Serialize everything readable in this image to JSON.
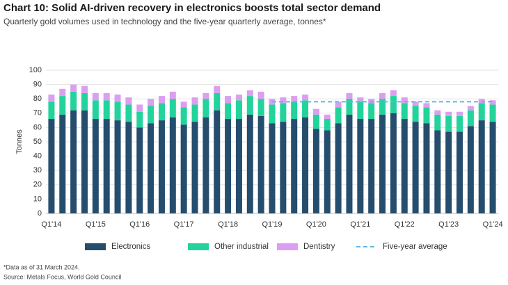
{
  "chart_data": {
    "type": "bar",
    "stacked": true,
    "title": "Chart 10: Solid AI-driven recovery in electronics boosts total sector demand",
    "subtitle": "Quarterly gold volumes used in technology and the five-year quarterly average, tonnes*",
    "y_label": "Tonnes",
    "categories": [
      "Q1'14",
      null,
      null,
      null,
      "Q1'15",
      null,
      null,
      null,
      "Q1'16",
      null,
      null,
      null,
      "Q1'17",
      null,
      null,
      null,
      "Q1'18",
      null,
      null,
      null,
      "Q1'19",
      null,
      null,
      null,
      "Q1'20",
      null,
      null,
      null,
      "Q1'21",
      null,
      null,
      null,
      "Q1'22",
      null,
      null,
      null,
      "Q1'23",
      null,
      null,
      null,
      "Q1'24"
    ],
    "series": [
      {
        "name": "Electronics",
        "color": "#254d6e",
        "values": [
          66,
          69,
          72,
          72,
          66,
          66,
          65,
          64,
          60,
          63,
          65,
          67,
          62,
          64,
          67,
          72,
          66,
          66,
          69,
          68,
          63,
          64,
          66,
          67,
          59,
          58,
          63,
          69,
          66,
          66,
          69,
          70,
          66,
          64,
          63,
          58,
          57,
          57,
          61,
          65,
          64
        ]
      },
      {
        "name": "Other industrial",
        "color": "#22d39b",
        "values": [
          12,
          13,
          13,
          12,
          13,
          13,
          13,
          12,
          11,
          12,
          12,
          13,
          12,
          12,
          13,
          12,
          11,
          13,
          13,
          12,
          13,
          13,
          12,
          12,
          10,
          8,
          11,
          11,
          12,
          11,
          11,
          12,
          11,
          11,
          11,
          11,
          11,
          11,
          11,
          12,
          12
        ]
      },
      {
        "name": "Dentistry",
        "color": "#dc9ef0",
        "values": [
          5,
          5,
          5,
          5,
          5,
          5,
          5,
          5,
          5,
          5,
          5,
          5,
          4,
          5,
          4,
          5,
          5,
          4,
          4,
          5,
          4,
          4,
          4,
          4,
          4,
          3,
          4,
          4,
          3,
          3,
          4,
          4,
          4,
          3,
          3,
          3,
          3,
          3,
          3,
          3,
          3
        ]
      },
      {
        "name": "Five-year average",
        "color": "#5db8ea",
        "type": "line",
        "dashed": true,
        "values": [
          null,
          null,
          null,
          null,
          null,
          null,
          null,
          null,
          null,
          null,
          null,
          null,
          null,
          null,
          null,
          null,
          null,
          null,
          null,
          null,
          78,
          78,
          78,
          78,
          78,
          78,
          78,
          78,
          78,
          78,
          78,
          78,
          78,
          78,
          78,
          78,
          78,
          78,
          78,
          78,
          78
        ]
      }
    ],
    "ylim": [
      0,
      100
    ],
    "yticks": [
      0,
      10,
      20,
      30,
      40,
      50,
      60,
      70,
      80,
      90,
      100
    ],
    "grid": true,
    "legend": "bottom",
    "notes": [
      "*Data as of 31 March 2024.",
      "Source: Metals Focus, World Gold Council"
    ]
  }
}
